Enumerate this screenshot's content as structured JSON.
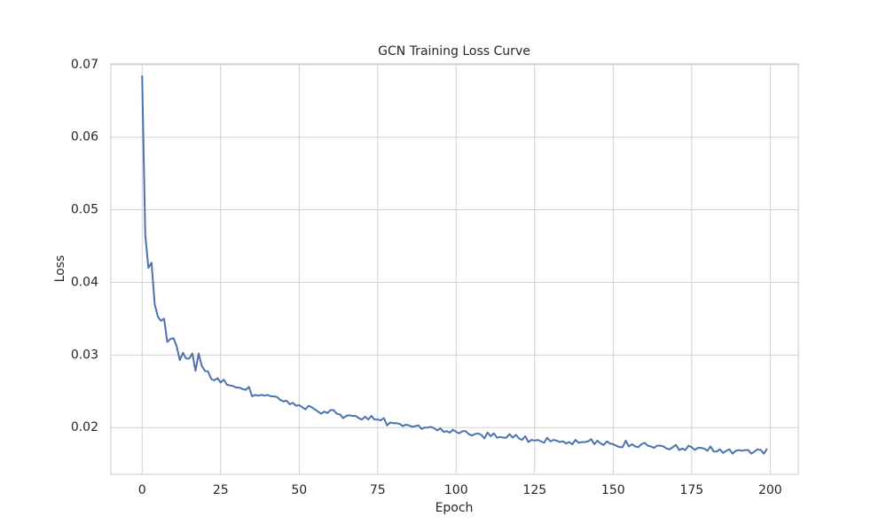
{
  "chart_data": {
    "type": "line",
    "title": "GCN Training Loss Curve",
    "x_label": "Epoch",
    "y_label": "Loss",
    "color": "#4c72b0",
    "grid": true,
    "xlim": [
      -9.95,
      208.95
    ],
    "ylim": [
      0.01355,
      0.0701
    ],
    "xticks": [
      0,
      25,
      50,
      75,
      100,
      125,
      150,
      175,
      200
    ],
    "yticks": [
      0.02,
      0.03,
      0.04,
      0.05,
      0.06,
      0.07
    ],
    "x": [
      0,
      1,
      2,
      3,
      4,
      5,
      6,
      7,
      8,
      9,
      10,
      11,
      12,
      13,
      14,
      15,
      16,
      17,
      18,
      19,
      20,
      21,
      22,
      23,
      24,
      25,
      26,
      27,
      28,
      29,
      30,
      31,
      32,
      33,
      34,
      35,
      36,
      37,
      38,
      39,
      40,
      41,
      42,
      43,
      44,
      45,
      46,
      47,
      48,
      49,
      50,
      51,
      52,
      53,
      54,
      55,
      56,
      57,
      58,
      59,
      60,
      61,
      62,
      63,
      64,
      65,
      66,
      67,
      68,
      69,
      70,
      71,
      72,
      73,
      74,
      75,
      76,
      77,
      78,
      79,
      80,
      81,
      82,
      83,
      84,
      85,
      86,
      87,
      88,
      89,
      90,
      91,
      92,
      93,
      94,
      95,
      96,
      97,
      98,
      99,
      100,
      101,
      102,
      103,
      104,
      105,
      106,
      107,
      108,
      109,
      110,
      111,
      112,
      113,
      114,
      115,
      116,
      117,
      118,
      119,
      120,
      121,
      122,
      123,
      124,
      125,
      126,
      127,
      128,
      129,
      130,
      131,
      132,
      133,
      134,
      135,
      136,
      137,
      138,
      139,
      140,
      141,
      142,
      143,
      144,
      145,
      146,
      147,
      148,
      149,
      150,
      151,
      152,
      153,
      154,
      155,
      156,
      157,
      158,
      159,
      160,
      161,
      162,
      163,
      164,
      165,
      166,
      167,
      168,
      169,
      170,
      171,
      172,
      173,
      174,
      175,
      176,
      177,
      178,
      179,
      180,
      181,
      182,
      183,
      184,
      185,
      186,
      187,
      188,
      189,
      190,
      191,
      192,
      193,
      194,
      195,
      196,
      197,
      198,
      199
    ],
    "values": [
      0.0685,
      0.0465,
      0.042,
      0.0427,
      0.037,
      0.0353,
      0.0347,
      0.035,
      0.0318,
      0.0322,
      0.0323,
      0.0312,
      0.0293,
      0.0303,
      0.0295,
      0.0295,
      0.0302,
      0.0278,
      0.0302,
      0.0285,
      0.0278,
      0.0277,
      0.0267,
      0.0265,
      0.0268,
      0.0262,
      0.0266,
      0.0259,
      0.0258,
      0.0257,
      0.0255,
      0.0255,
      0.0253,
      0.0252,
      0.0256,
      0.0243,
      0.0245,
      0.0244,
      0.0245,
      0.0244,
      0.0245,
      0.0243,
      0.0243,
      0.0242,
      0.0238,
      0.0236,
      0.0237,
      0.0232,
      0.0234,
      0.023,
      0.0231,
      0.0228,
      0.0225,
      0.023,
      0.0228,
      0.0225,
      0.0222,
      0.0219,
      0.0222,
      0.022,
      0.0224,
      0.0224,
      0.0219,
      0.0218,
      0.0213,
      0.0216,
      0.0217,
      0.0216,
      0.0216,
      0.0213,
      0.0211,
      0.0215,
      0.0211,
      0.0216,
      0.0211,
      0.0211,
      0.021,
      0.0213,
      0.0203,
      0.0207,
      0.0206,
      0.0206,
      0.0205,
      0.0202,
      0.0204,
      0.0203,
      0.0201,
      0.0202,
      0.0203,
      0.0198,
      0.02,
      0.02,
      0.0201,
      0.0199,
      0.0196,
      0.0199,
      0.0194,
      0.0195,
      0.0193,
      0.0197,
      0.0194,
      0.0192,
      0.0195,
      0.0195,
      0.0191,
      0.0189,
      0.0191,
      0.0192,
      0.019,
      0.0185,
      0.0193,
      0.0188,
      0.0192,
      0.0186,
      0.0187,
      0.0186,
      0.0186,
      0.0191,
      0.0186,
      0.019,
      0.0185,
      0.0183,
      0.0188,
      0.018,
      0.0183,
      0.0182,
      0.0183,
      0.0181,
      0.0179,
      0.0186,
      0.0181,
      0.0183,
      0.0182,
      0.018,
      0.0181,
      0.0178,
      0.018,
      0.0177,
      0.0183,
      0.0179,
      0.018,
      0.018,
      0.0181,
      0.0184,
      0.0177,
      0.0182,
      0.0178,
      0.0176,
      0.0181,
      0.0178,
      0.0177,
      0.0175,
      0.0173,
      0.0173,
      0.0182,
      0.0174,
      0.0177,
      0.0174,
      0.0173,
      0.0177,
      0.0179,
      0.0175,
      0.0174,
      0.0172,
      0.0175,
      0.0175,
      0.0174,
      0.0171,
      0.017,
      0.0173,
      0.0176,
      0.0169,
      0.0171,
      0.0169,
      0.0175,
      0.0173,
      0.0169,
      0.0172,
      0.0172,
      0.0171,
      0.0168,
      0.0174,
      0.0167,
      0.0167,
      0.017,
      0.0165,
      0.0168,
      0.017,
      0.0164,
      0.0168,
      0.0169,
      0.0168,
      0.0169,
      0.0169,
      0.0164,
      0.0167,
      0.017,
      0.0169,
      0.0164,
      0.0171
    ]
  }
}
